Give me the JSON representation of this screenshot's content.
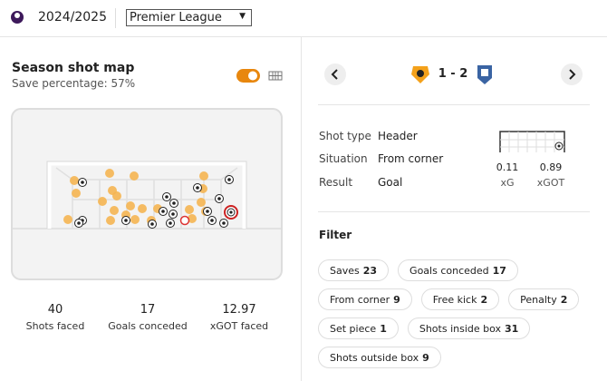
{
  "header": {
    "season": "2024/2025",
    "league": "Premier League"
  },
  "shot_map": {
    "title": "Season shot map",
    "subtitle": "Save percentage: 57%",
    "stats": [
      {
        "value": 40,
        "label": "Shots faced"
      },
      {
        "value": 17,
        "label": "Goals conceded"
      },
      {
        "value": 12.97,
        "label": "xGOT faced"
      }
    ]
  },
  "shot_detail": {
    "score": "1 - 2",
    "rows": [
      [
        "Shot type",
        "Header"
      ],
      [
        "Situation",
        "From corner"
      ],
      [
        "Result",
        "Goal"
      ]
    ],
    "metrics": [
      {
        "value": 0.11,
        "label": "xG"
      },
      {
        "value": 0.89,
        "label": "xGOT"
      }
    ]
  },
  "filter": {
    "title": "Filter",
    "chips": [
      {
        "label": "Saves",
        "count": 23
      },
      {
        "label": "Goals conceded",
        "count": 17
      },
      {
        "label": "From corner",
        "count": 9
      },
      {
        "label": "Free kick",
        "count": 2
      },
      {
        "label": "Penalty",
        "count": 2
      },
      {
        "label": "Set piece",
        "count": 1
      },
      {
        "label": "Shots inside box",
        "count": 31
      },
      {
        "label": "Shots outside box",
        "count": 9
      }
    ]
  }
}
